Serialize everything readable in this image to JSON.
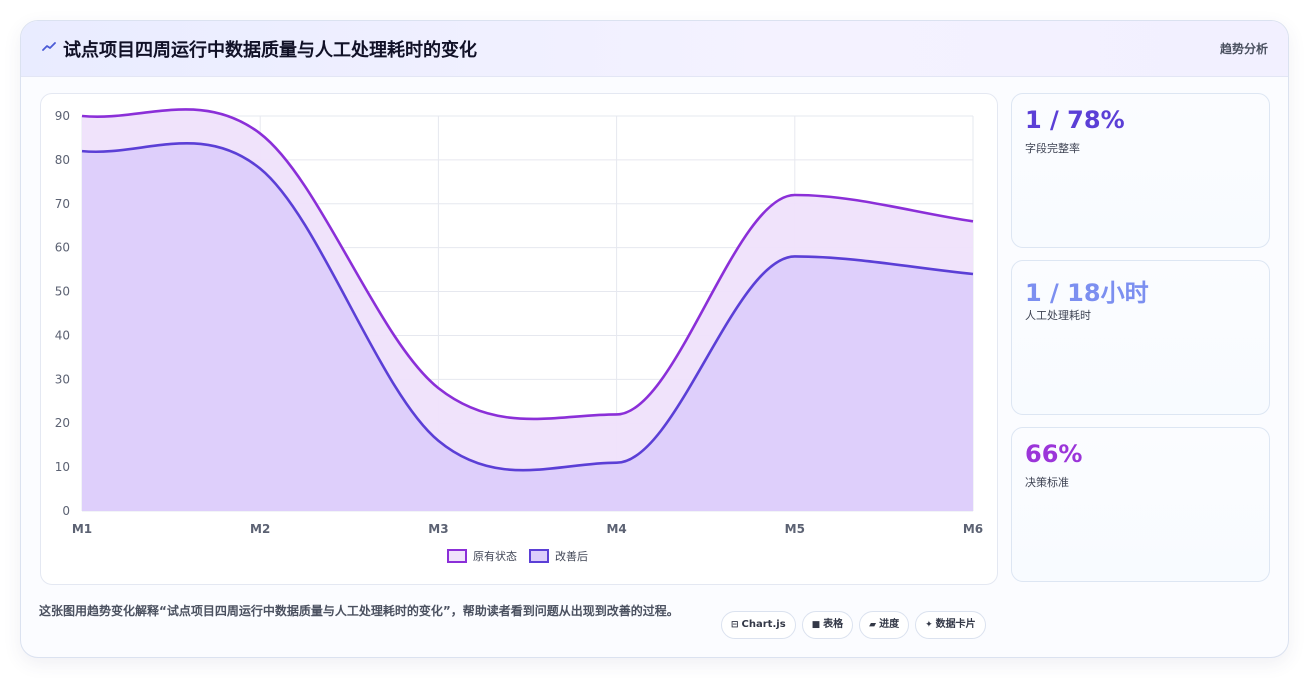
{
  "header": {
    "title": "试点项目四周运行中数据质量与人工处理耗时的变化",
    "action_label": "趋势分析",
    "icon": "trend-line-icon"
  },
  "chart_data": {
    "type": "area",
    "title": "",
    "xlabel": "",
    "ylabel": "",
    "categories": [
      "M1",
      "M2",
      "M3",
      "M4",
      "M5",
      "M6"
    ],
    "ylim": [
      0,
      90
    ],
    "yticks": [
      0,
      10,
      20,
      30,
      40,
      50,
      60,
      70,
      80,
      90
    ],
    "grid": true,
    "legend_position": "bottom",
    "series": [
      {
        "name": "原有状态",
        "values": [
          90,
          86,
          28,
          22,
          72,
          66
        ],
        "color": "#8b2fd8",
        "fill": "#efe2fb"
      },
      {
        "name": "改善后",
        "values": [
          82,
          78,
          16,
          11,
          58,
          54
        ],
        "color": "#5b3fd6",
        "fill": "#dccdfb"
      }
    ]
  },
  "stats": [
    {
      "value": "1 / 78%",
      "label": "字段完整率",
      "color": "#5b3fd6"
    },
    {
      "value": "1 / 18小时",
      "label": "人工处理耗时",
      "color": "#7c8ff0"
    },
    {
      "value": "66%",
      "label": "决策标准",
      "color": "#9b35d9"
    }
  ],
  "footnote": "这张图用趋势变化解释“试点项目四周运行中数据质量与人工处理耗时的变化”，帮助读者看到问题从出现到改善的过程。",
  "chips": [
    {
      "icon": "chart-icon",
      "glyph": "⊟",
      "label": "Chart.js"
    },
    {
      "icon": "table-icon",
      "glyph": "■",
      "label": "表格"
    },
    {
      "icon": "progress-icon",
      "glyph": "▰",
      "label": "进度"
    },
    {
      "icon": "sparkle-icon",
      "glyph": "✦",
      "label": "数据卡片"
    }
  ]
}
